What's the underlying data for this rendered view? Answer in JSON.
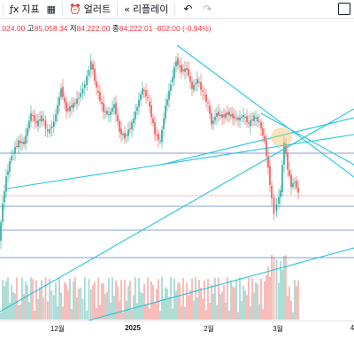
{
  "toolbar": {
    "items": [
      {
        "icon": "indicators-icon",
        "label": "지표"
      },
      {
        "icon": "alert-icon",
        "label": "얼러트"
      },
      {
        "icon": "replay-icon",
        "label": "리플레이"
      }
    ],
    "undo_icon": "↶",
    "redo_icon": "↷"
  },
  "legend": {
    "open_value": ".024.00",
    "high_label": "고",
    "high_value": "85,058.34",
    "low_label": "저",
    "low_value": "84,222.00",
    "close_label": "종",
    "close_value": "84,222.01",
    "change": "-802.00 (-0.94%)"
  },
  "x_axis": {
    "ticks": [
      {
        "label": "12월",
        "x": 65
      },
      {
        "label": "2025",
        "x": 150
      },
      {
        "label": "2월",
        "x": 236
      },
      {
        "label": "3월",
        "x": 314
      },
      {
        "label": "4",
        "x": 398
      }
    ]
  },
  "colors": {
    "up": "#26a69a",
    "down": "#ef5350",
    "trendline": "#26c6da",
    "hline": "#5b7fd1",
    "volume_up": "#a7d8d2",
    "volume_down": "#f7b6b3"
  }
}
